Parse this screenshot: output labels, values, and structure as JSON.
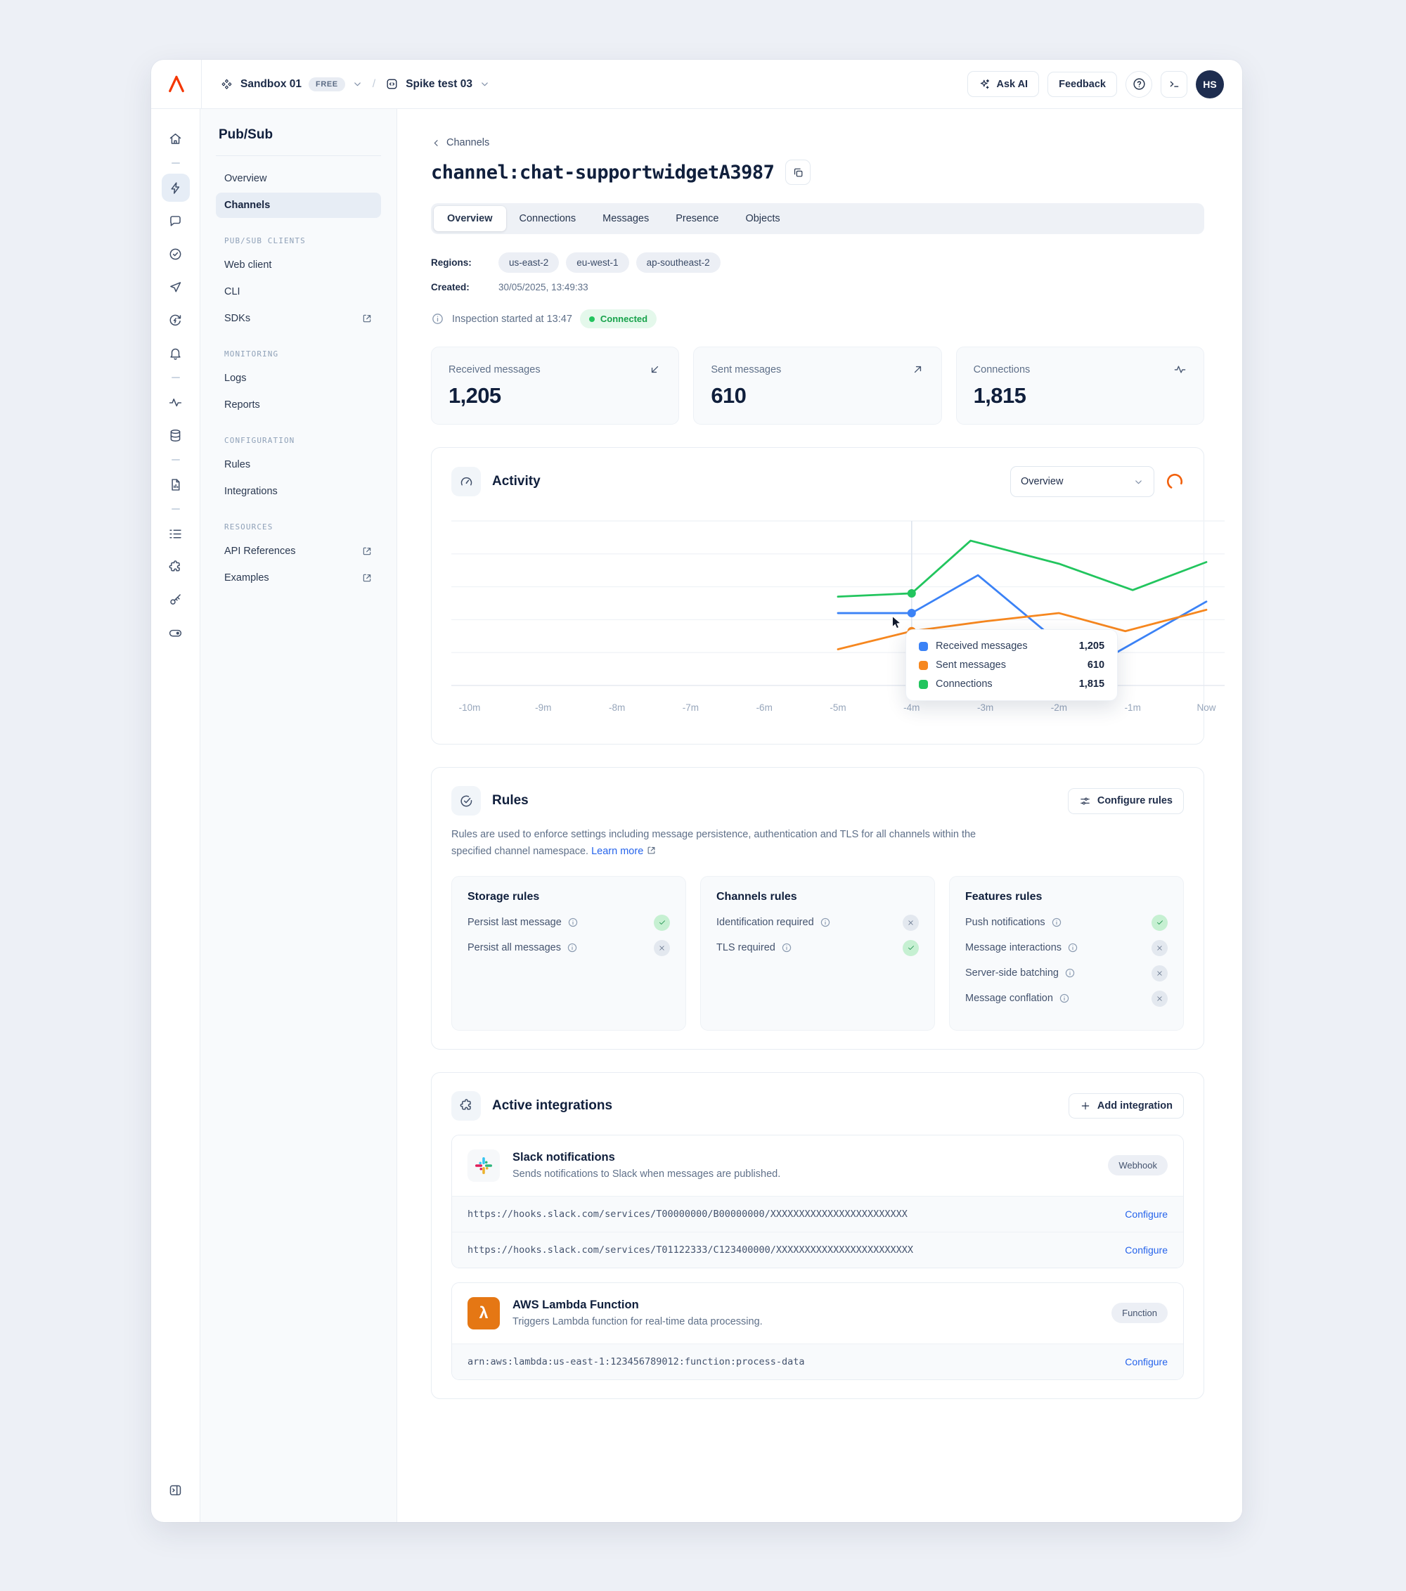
{
  "colors": {
    "brand": "#f43600",
    "link": "#2563eb",
    "success": "#21c45d",
    "accent_orange": "#f2600c"
  },
  "topbar": {
    "org": {
      "label": "Sandbox 01",
      "badge": "FREE"
    },
    "separator": "/",
    "app": {
      "label": "Spike test 03"
    },
    "ask_ai": "Ask AI",
    "feedback": "Feedback",
    "avatar": "HS"
  },
  "sidebar": {
    "title": "Pub/Sub",
    "sections": [
      {
        "label": "",
        "items": [
          {
            "label": "Overview"
          },
          {
            "label": "Channels"
          }
        ]
      },
      {
        "label": "PUB/SUB CLIENTS",
        "items": [
          {
            "label": "Web client"
          },
          {
            "label": "CLI"
          },
          {
            "label": "SDKs"
          }
        ]
      },
      {
        "label": "MONITORING",
        "items": [
          {
            "label": "Logs"
          },
          {
            "label": "Reports"
          }
        ]
      },
      {
        "label": "CONFIGURATION",
        "items": [
          {
            "label": "Rules"
          },
          {
            "label": "Integrations"
          }
        ]
      },
      {
        "label": "RESOURCES",
        "items": [
          {
            "label": "API References"
          },
          {
            "label": "Examples"
          }
        ]
      }
    ]
  },
  "page": {
    "back": "Channels",
    "title": "channel:chat-supportwidgetA3987",
    "tabs": [
      {
        "label": "Overview"
      },
      {
        "label": "Connections"
      },
      {
        "label": "Messages"
      },
      {
        "label": "Presence"
      },
      {
        "label": "Objects"
      }
    ],
    "regions_label": "Regions:",
    "regions": [
      {
        "name": "us-east-2"
      },
      {
        "name": "eu-west-1"
      },
      {
        "name": "ap-southeast-2"
      }
    ],
    "created_label": "Created:",
    "created_value": "30/05/2025, 13:49:33",
    "inspection_text": "Inspection started at 13:47",
    "connection_status": "Connected"
  },
  "stats": [
    {
      "label": "Received messages",
      "value": "1,205"
    },
    {
      "label": "Sent messages",
      "value": "610"
    },
    {
      "label": "Connections",
      "value": "1,815"
    }
  ],
  "activity": {
    "title": "Activity",
    "selector_value": "Overview"
  },
  "chart_data": {
    "type": "line",
    "title": "Activity",
    "x_ticks": [
      "-10m",
      "-9m",
      "-8m",
      "-7m",
      "-6m",
      "-5m",
      "-4m",
      "-3m",
      "-2m",
      "-1m",
      "Now"
    ],
    "x_tick_values": [
      -10,
      -9,
      -8,
      -7,
      -6,
      -5,
      -4,
      -3,
      -2,
      -1,
      0
    ],
    "x_range": [
      -10,
      0
    ],
    "y_range": [
      0,
      100
    ],
    "grid": true,
    "legend_position": "tooltip",
    "hover_x": -4,
    "series": [
      {
        "name": "Received messages",
        "color": "#3b82f6",
        "points": [
          [
            -5,
            44
          ],
          [
            -4,
            44
          ],
          [
            -3.1,
            67
          ],
          [
            -2,
            26
          ],
          [
            -1.3,
            18
          ],
          [
            0,
            51
          ]
        ]
      },
      {
        "name": "Sent messages",
        "color": "#f6871f",
        "points": [
          [
            -5,
            22
          ],
          [
            -4,
            33
          ],
          [
            -3,
            39
          ],
          [
            -2,
            44
          ],
          [
            -1.1,
            33
          ],
          [
            0,
            46
          ]
        ]
      },
      {
        "name": "Connections",
        "color": "#22c55e",
        "points": [
          [
            -5,
            54
          ],
          [
            -4,
            56
          ],
          [
            -3.2,
            88
          ],
          [
            -2,
            74
          ],
          [
            -1,
            58
          ],
          [
            0,
            75
          ]
        ]
      }
    ],
    "tooltip": {
      "rows": [
        {
          "label": "Received messages",
          "value": "1,205",
          "color": "#3b82f6"
        },
        {
          "label": "Sent messages",
          "value": "610",
          "color": "#f6871f"
        },
        {
          "label": "Connections",
          "value": "1,815",
          "color": "#22c55e"
        }
      ]
    }
  },
  "rules": {
    "title": "Rules",
    "configure_label": "Configure rules",
    "description": "Rules are used to enforce settings including message persistence, authentication and TLS for all channels within the specified channel namespace.",
    "learn_more": "Learn more",
    "cards": [
      {
        "title": "Storage rules",
        "rules": [
          {
            "label": "Persist last message",
            "enabled": true
          },
          {
            "label": "Persist all messages",
            "enabled": false
          }
        ]
      },
      {
        "title": "Channels rules",
        "rules": [
          {
            "label": "Identification required",
            "enabled": false
          },
          {
            "label": "TLS required",
            "enabled": true
          }
        ]
      },
      {
        "title": "Features rules",
        "rules": [
          {
            "label": "Push notifications",
            "enabled": true
          },
          {
            "label": "Message interactions",
            "enabled": false
          },
          {
            "label": "Server-side batching",
            "enabled": false
          },
          {
            "label": "Message conflation",
            "enabled": false
          }
        ]
      }
    ]
  },
  "integrations": {
    "title": "Active integrations",
    "add_label": "Add integration",
    "items": [
      {
        "name": "Slack notifications",
        "badge": "Webhook",
        "description": "Sends notifications to Slack when messages are published.",
        "endpoints": [
          {
            "value": "https://hooks.slack.com/services/T00000000/B00000000/XXXXXXXXXXXXXXXXXXXXXXXX",
            "action": "Configure"
          },
          {
            "value": "https://hooks.slack.com/services/T01122333/C123400000/XXXXXXXXXXXXXXXXXXXXXXXX",
            "action": "Configure"
          }
        ]
      },
      {
        "name": "AWS Lambda Function",
        "badge": "Function",
        "description": "Triggers Lambda function for real-time data processing.",
        "endpoints": [
          {
            "value": "arn:aws:lambda:us-east-1:123456789012:function:process-data",
            "action": "Configure"
          }
        ]
      }
    ]
  }
}
